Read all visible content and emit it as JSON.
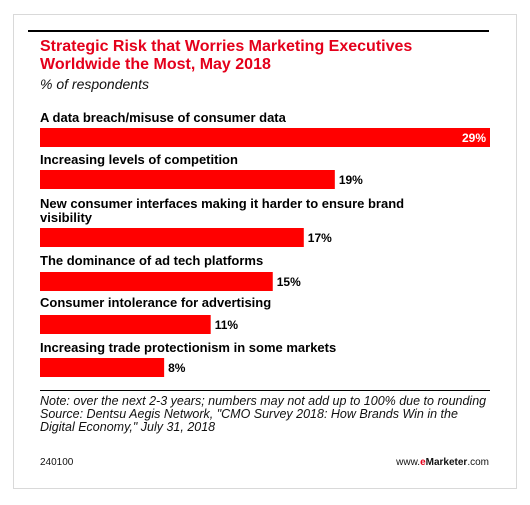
{
  "header": {
    "title": "Strategic Risk that Worries Marketing Executives Worldwide the Most, May 2018",
    "subtitle": "% of respondents"
  },
  "chart_data": {
    "type": "bar",
    "orientation": "horizontal",
    "categories": [
      "A data breach/misuse of consumer data",
      "Increasing levels of competition",
      "New consumer interfaces making it harder to ensure brand visibility",
      "The dominance of ad tech platforms",
      "Consumer intolerance for advertising",
      "Increasing trade protectionism in some markets"
    ],
    "category_lines": [
      [
        "A data breach/misuse of consumer data"
      ],
      [
        "Increasing levels of competition"
      ],
      [
        "New consumer interfaces making it harder to ensure brand",
        "visibility"
      ],
      [
        "The dominance of ad tech platforms"
      ],
      [
        "Consumer intolerance for advertising"
      ],
      [
        "Increasing trade protectionism in some markets"
      ]
    ],
    "values": [
      29,
      19,
      17,
      15,
      11,
      8
    ],
    "value_labels": [
      "29%",
      "19%",
      "17%",
      "15%",
      "11%",
      "8%"
    ],
    "value_unit": "%",
    "bar_color": "#ff0000",
    "xlim": [
      0,
      29
    ],
    "grid": false,
    "legend": "none"
  },
  "notes": {
    "note": "Note: over the next 2-3 years; numbers may not add up to 100% due to rounding",
    "source": "Source: Dentsu Aegis Network, \"CMO Survey 2018: How Brands Win in the Digital Economy,\" July 31, 2018"
  },
  "footer": {
    "chart_id": "240100",
    "brand_prefix": "www.",
    "brand_accent": "e",
    "brand_name": "Marketer",
    "brand_suffix": ".com"
  }
}
